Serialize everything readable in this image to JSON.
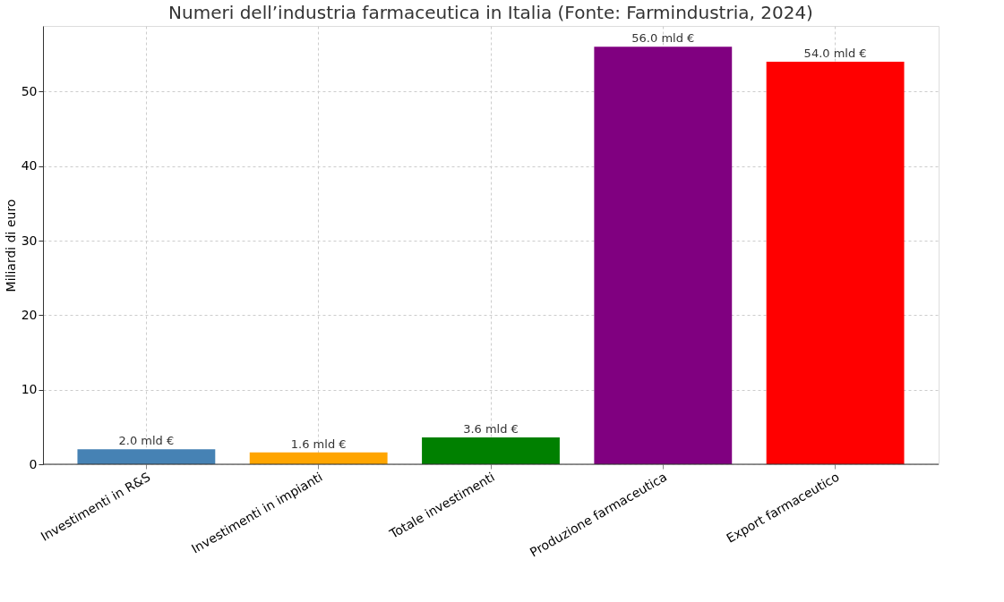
{
  "chart_data": {
    "type": "bar",
    "title": "Numeri dell’industria farmaceutica in Italia (Fonte: Farmindustria, 2024)",
    "ylabel": "Miliardi di euro",
    "categories": [
      "Investimenti in R&S",
      "Investimenti in impianti",
      "Totale investimenti",
      "Produzione farmaceutica",
      "Export farmaceutico"
    ],
    "values": [
      2.0,
      1.6,
      3.6,
      56.0,
      54.0
    ],
    "colors": [
      "#4682b4",
      "#ffa500",
      "#008000",
      "#800080",
      "#ff0000"
    ],
    "value_labels": [
      "2.0 mld €",
      "1.6 mld €",
      "3.6 mld €",
      "56.0 mld €",
      "54.0 mld €"
    ],
    "ylim": [
      0,
      58.8
    ],
    "yticks": [
      0,
      10,
      20,
      30,
      40,
      50
    ],
    "grid": true
  }
}
